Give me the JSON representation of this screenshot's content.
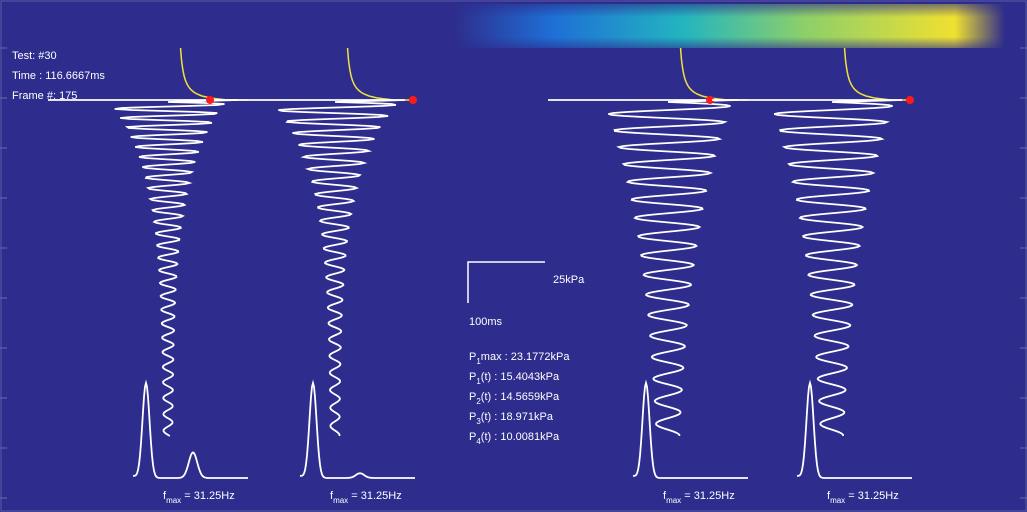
{
  "info": {
    "test": "Test: #30",
    "time": "Time   : 116.6667ms",
    "frame": "Frame #: 175"
  },
  "scale_bar": {
    "pressure": "25kPa",
    "time": "100ms"
  },
  "pressures": [
    {
      "symbol": "P",
      "subscript": "1",
      "text": "max : 23.1772kPa"
    },
    {
      "symbol": "P",
      "subscript": "1",
      "text": "(t)   : 15.4043kPa"
    },
    {
      "symbol": "P",
      "subscript": "2",
      "text": "(t)   : 14.5659kPa"
    },
    {
      "symbol": "P",
      "subscript": "3",
      "text": "(t)   : 18.971kPa"
    },
    {
      "symbol": "P",
      "subscript": "4",
      "text": "(t)   : 10.0081kPa"
    }
  ],
  "frequency_labels": [
    {
      "symbol": "f",
      "subscript": "max",
      "text": " = 31.25Hz"
    },
    {
      "symbol": "f",
      "subscript": "max",
      "text": " = 31.25Hz"
    },
    {
      "symbol": "f",
      "subscript": "max",
      "text": " = 31.25Hz"
    },
    {
      "symbol": "f",
      "subscript": "max",
      "text": " = 31.25Hz"
    }
  ]
}
